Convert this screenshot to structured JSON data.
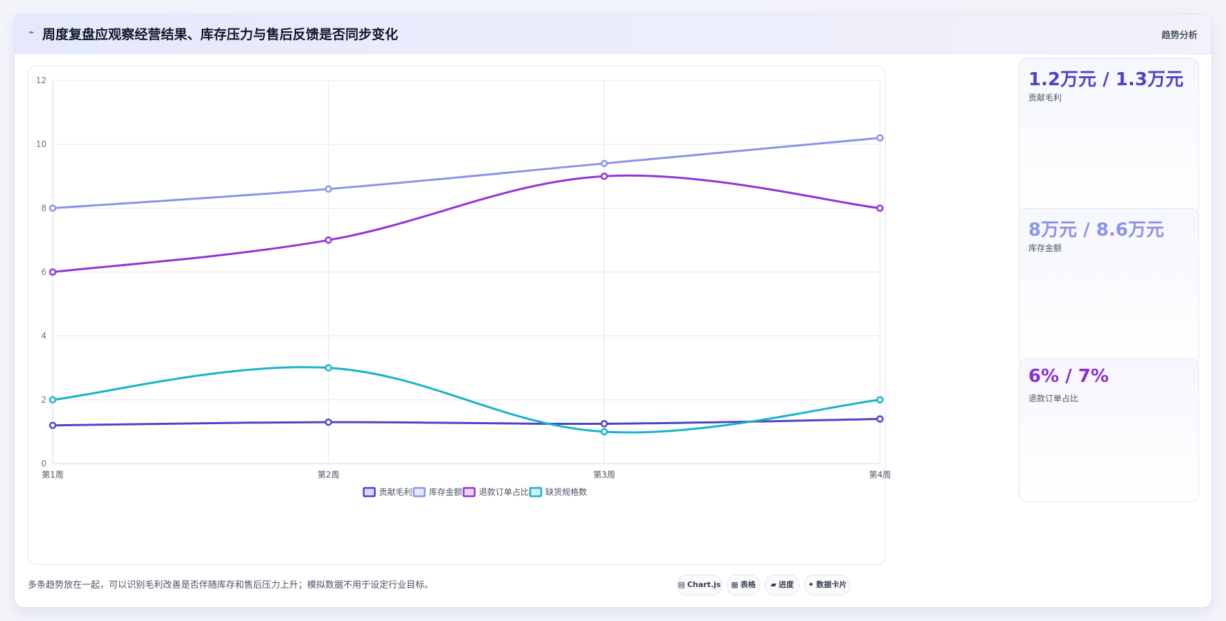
{
  "header": {
    "icon": "⌁",
    "title": "周度复盘应观察经营结果、库存压力与售后反馈是否同步变化",
    "action_label": "趋势分析"
  },
  "chart_data": {
    "type": "line",
    "categories": [
      "第1周",
      "第2周",
      "第3周",
      "第4周"
    ],
    "ylim": [
      0,
      12
    ],
    "yticks": [
      0,
      2,
      4,
      6,
      8,
      10,
      12
    ],
    "grid": true,
    "legend_position": "bottom",
    "series": [
      {
        "name": "贡献毛利",
        "values": [
          1.2,
          1.3,
          1.25,
          1.4
        ],
        "color": "#4b44c9"
      },
      {
        "name": "库存金额",
        "values": [
          8,
          8.6,
          9.4,
          10.2
        ],
        "color": "#8b93e8"
      },
      {
        "name": "退款订单占比",
        "values": [
          6,
          7,
          9,
          8
        ],
        "color": "#9333d6"
      },
      {
        "name": "缺货规格数",
        "values": [
          2,
          3,
          1,
          2
        ],
        "color": "#17b3c9"
      }
    ]
  },
  "metrics": [
    {
      "value": "1.2万元 / 1.3万元",
      "label": "贡献毛利",
      "color": "#4b44c9"
    },
    {
      "value": "8万元 / 8.6万元",
      "label": "库存金额",
      "color": "#8b93e8"
    },
    {
      "value": "6% / 7%",
      "label": "退款订单占比",
      "color": "#8a2fd0"
    }
  ],
  "footnote": "多条趋势放在一起，可以识别毛利改善是否伴随库存和售后压力上升；模拟数据不用于设定行业目标。",
  "chips": [
    {
      "icon": "▤",
      "label": "Chart.js"
    },
    {
      "icon": "▦",
      "label": "表格"
    },
    {
      "icon": "▰",
      "label": "进度"
    },
    {
      "icon": "✦",
      "label": "数据卡片"
    }
  ]
}
